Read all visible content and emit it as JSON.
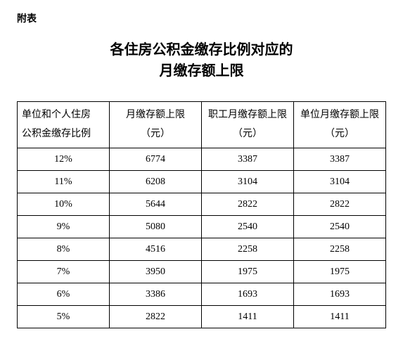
{
  "attachment_label": "附表",
  "title_line1": "各住房公积金缴存比例对应的",
  "title_line2": "月缴存额上限",
  "table": {
    "type": "table",
    "columns": [
      {
        "header_line1": "单位和个人住房",
        "header_line2": "公积金缴存比例",
        "align": "left"
      },
      {
        "header_line1": "月缴存额上限",
        "header_line2": "（元）",
        "align": "center"
      },
      {
        "header_line1": "职工月缴存额上限",
        "header_line2": "（元）",
        "align": "center"
      },
      {
        "header_line1": "单位月缴存额上限",
        "header_line2": "（元）",
        "align": "center"
      }
    ],
    "rows": [
      [
        "12%",
        "6774",
        "3387",
        "3387"
      ],
      [
        "11%",
        "6208",
        "3104",
        "3104"
      ],
      [
        "10%",
        "5644",
        "2822",
        "2822"
      ],
      [
        "9%",
        "5080",
        "2540",
        "2540"
      ],
      [
        "8%",
        "4516",
        "2258",
        "2258"
      ],
      [
        "7%",
        "3950",
        "1975",
        "1975"
      ],
      [
        "6%",
        "3386",
        "1693",
        "1693"
      ],
      [
        "5%",
        "2822",
        "1411",
        "1411"
      ]
    ],
    "border_color": "#000000",
    "background_color": "#ffffff",
    "header_fontsize": 14,
    "cell_fontsize": 14
  }
}
